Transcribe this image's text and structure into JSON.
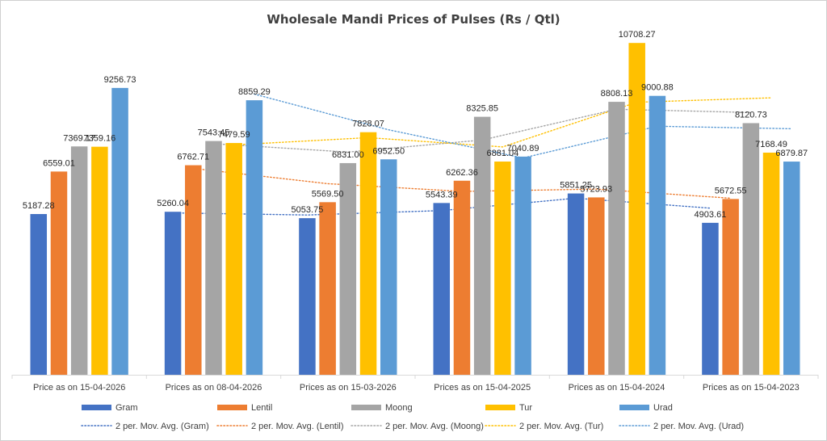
{
  "chart_data": {
    "type": "bar",
    "title": "Wholesale Mandi Prices of Pulses  (Rs / Qtl)",
    "categories": [
      "Price as on 15-04-2026",
      "Prices as on 08-04-2026",
      "Prices as on 15-03-2026",
      "Prices as on 15-04-2025",
      "Prices as on 15-04-2024",
      "Prices as on 15-04-2023"
    ],
    "series": [
      {
        "name": "Gram",
        "color": "#4472C4",
        "values": [
          5187.28,
          5260.04,
          5053.75,
          5543.39,
          5851.25,
          4903.61
        ],
        "labels": [
          "5187.28",
          "5260.04",
          "5053.75",
          "5543.39",
          "5851.25",
          "4903.61"
        ]
      },
      {
        "name": "Lentil",
        "color": "#ED7D31",
        "values": [
          6559.01,
          6762.71,
          5569.5,
          6262.36,
          5723.93,
          5672.55
        ],
        "labels": [
          "6559.01",
          "6762.71",
          "5569.50",
          "6262.36",
          "5723.93",
          "5672.55"
        ]
      },
      {
        "name": "Moong",
        "color": "#A5A5A5",
        "values": [
          7369.17,
          7543.45,
          6831.0,
          8325.85,
          8808.13,
          8120.73
        ],
        "labels": [
          "7369.17",
          "7543.45",
          "6831.00",
          "8325.85",
          "8808.13",
          "8120.73"
        ]
      },
      {
        "name": "Tur",
        "color": "#FFC000",
        "values": [
          7359.16,
          7479.59,
          7828.07,
          6881.04,
          10708.27,
          7168.49
        ],
        "labels": [
          "7359.16",
          "7479.59",
          "7828.07",
          "6881.04",
          "10708.27",
          "7168.49"
        ]
      },
      {
        "name": "Urad",
        "color": "#5B9BD5",
        "values": [
          9256.73,
          8859.29,
          6952.5,
          7040.89,
          9000.88,
          6879.87
        ],
        "labels": [
          "9256.73",
          "8859.29",
          "6952.50",
          "7040.89",
          "9000.88",
          "6879.87"
        ]
      }
    ],
    "trendlines": [
      {
        "name": "2 per. Mov. Avg. (Gram)",
        "series": "Gram",
        "period": 2,
        "style": "dotted"
      },
      {
        "name": "2 per. Mov. Avg. (Lentil)",
        "series": "Lentil",
        "period": 2,
        "style": "dotted"
      },
      {
        "name": "2 per. Mov. Avg. (Moong)",
        "series": "Moong",
        "period": 2,
        "style": "dotted"
      },
      {
        "name": "2 per. Mov. Avg. (Tur)",
        "series": "Tur",
        "period": 2,
        "style": "dotted"
      },
      {
        "name": "2 per. Mov. Avg. (Urad)",
        "series": "Urad",
        "period": 2,
        "style": "dotted"
      }
    ],
    "ylim": [
      0,
      11000
    ],
    "grid": false,
    "legend": "bottom"
  }
}
